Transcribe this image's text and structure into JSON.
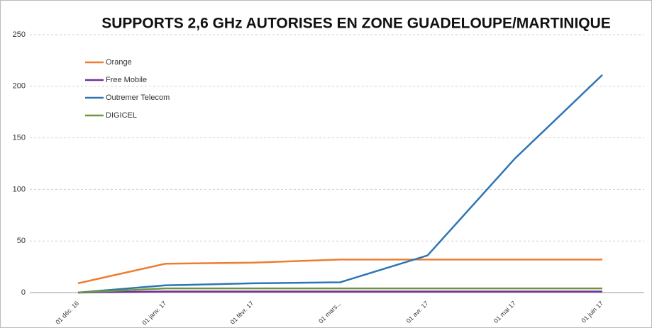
{
  "chart_data": {
    "type": "line",
    "title": "SUPPORTS 2,6 GHz AUTORISES EN ZONE GUADELOUPE/MARTINIQUE",
    "categories": [
      "01 déc. 16",
      "01 janv. 17",
      "01 févr. 17",
      "01 mars...",
      "01 avr. 17",
      "01 mai 17",
      "01 juin 17"
    ],
    "series": [
      {
        "name": "Orange",
        "color": "#ed7d31",
        "values": [
          9,
          28,
          29,
          32,
          32,
          32,
          32
        ]
      },
      {
        "name": "Free Mobile",
        "color": "#7030a0",
        "values": [
          0,
          1,
          1,
          1,
          1,
          1,
          1
        ]
      },
      {
        "name": "Outremer Telecom",
        "color": "#2e75b6",
        "values": [
          0,
          7,
          9,
          10,
          36,
          130,
          211
        ]
      },
      {
        "name": "DIGICEL",
        "color": "#70963c",
        "values": [
          0,
          4,
          4,
          4,
          4,
          4,
          4
        ]
      }
    ],
    "ylim": [
      0,
      250
    ],
    "yticks": [
      0,
      50,
      100,
      150,
      200,
      250
    ],
    "grid": true,
    "legend": "top-left"
  }
}
